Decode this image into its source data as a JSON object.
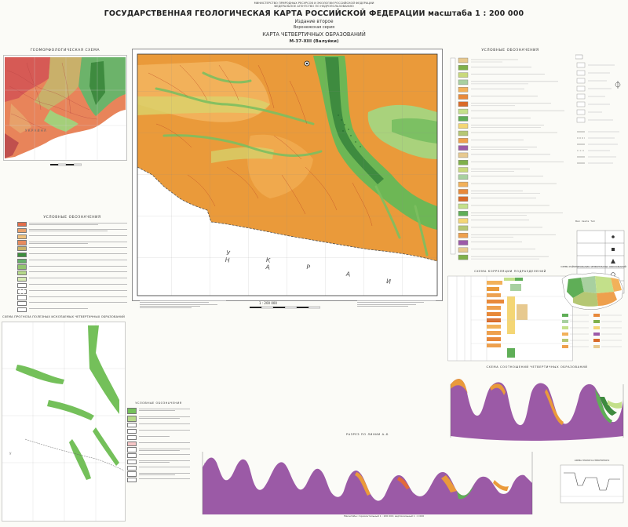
{
  "header": {
    "org_lines": [
      "МИНИСТЕРСТВО ПРИРОДНЫХ РЕСУРСОВ И ЭКОЛОГИИ РОССИЙСКОЙ ФЕДЕРАЦИИ",
      "ФЕДЕРАЛЬНОЕ АГЕНТСТВО ПО НЕДРОПОЛЬЗОВАНИЮ"
    ],
    "title": "ГОСУДАРСТВЕННАЯ ГЕОЛОГИЧЕСКАЯ КАРТА РОССИЙСКОЙ ФЕДЕРАЦИИ масштаба 1 : 200 000",
    "edition": "Издание второе",
    "series": "Воронежская серия",
    "map_type": "КАРТА ЧЕТВЕРТИЧНЫХ ОБРАЗОВАНИЙ",
    "sheet": "М-37-XIII (Валуйки)"
  },
  "geomorph": {
    "title": "ГЕОМОРФОЛОГИЧЕСКАЯ СХЕМА",
    "country": "У К Р А И Н А",
    "legend_title": "УСЛОВНЫЕ ОБОЗНАЧЕНИЯ"
  },
  "main_map": {
    "country_label": "У К Р А И Н А",
    "scale_text": "1 : 200 000"
  },
  "legend_right": {
    "title": "УСЛОВНЫЕ ОБОЗНАЧЕНИЯ",
    "colors": [
      "#e7c98f",
      "#7fb04a",
      "#c9d97c",
      "#a8d0a0",
      "#f2b15a",
      "#e8893a",
      "#d96a28",
      "#c3e08a",
      "#5fae57",
      "#f4d675",
      "#b5c774",
      "#eea04d",
      "#9c5aa8"
    ]
  },
  "small_legend": {
    "columns": [
      "Вал",
      "Свита",
      "Тип"
    ]
  },
  "correlation": {
    "title": "СХЕМА КОРРЕЛЯЦИИ ПОДРАЗДЕЛЕНИЙ"
  },
  "regionalization": {
    "title": "СХЕМА РАЙОНИРОВАНИЯ ЧЕТВЕРТИЧНЫХ ОБРАЗОВАНИЙ"
  },
  "bottom_left": {
    "title": "СХЕМА ПРОГНОЗА ПОЛЕЗНЫХ ИСКОПАЕМЫХ ЧЕТВЕРТИЧНЫХ ОБРАЗОВАНИЙ",
    "legend_title": "УСЛОВНЫЕ ОБОЗНАЧЕНИЯ"
  },
  "sections": {
    "upper_title": "СХЕМА СООТНОШЕНИЙ ЧЕТВЕРТИЧНЫХ ОБРАЗОВАНИЙ",
    "lower_title": "РАЗРЕЗ ПО ЛИНИИ А–Б",
    "scale_note": "Масштабы: горизонтальный 1 : 200 000; вертикальный 1 : 2 000"
  },
  "right_bottom": {
    "title": "СХЕМА ГЕОЛОГО-СТРУКТУРНОГО"
  },
  "icons": [
    "compass-rose-icon",
    "scale-bar-icon"
  ],
  "accent": {
    "purple": "#9b5aa6",
    "orange": "#ea9a3a",
    "green": "#4e9c3b"
  }
}
